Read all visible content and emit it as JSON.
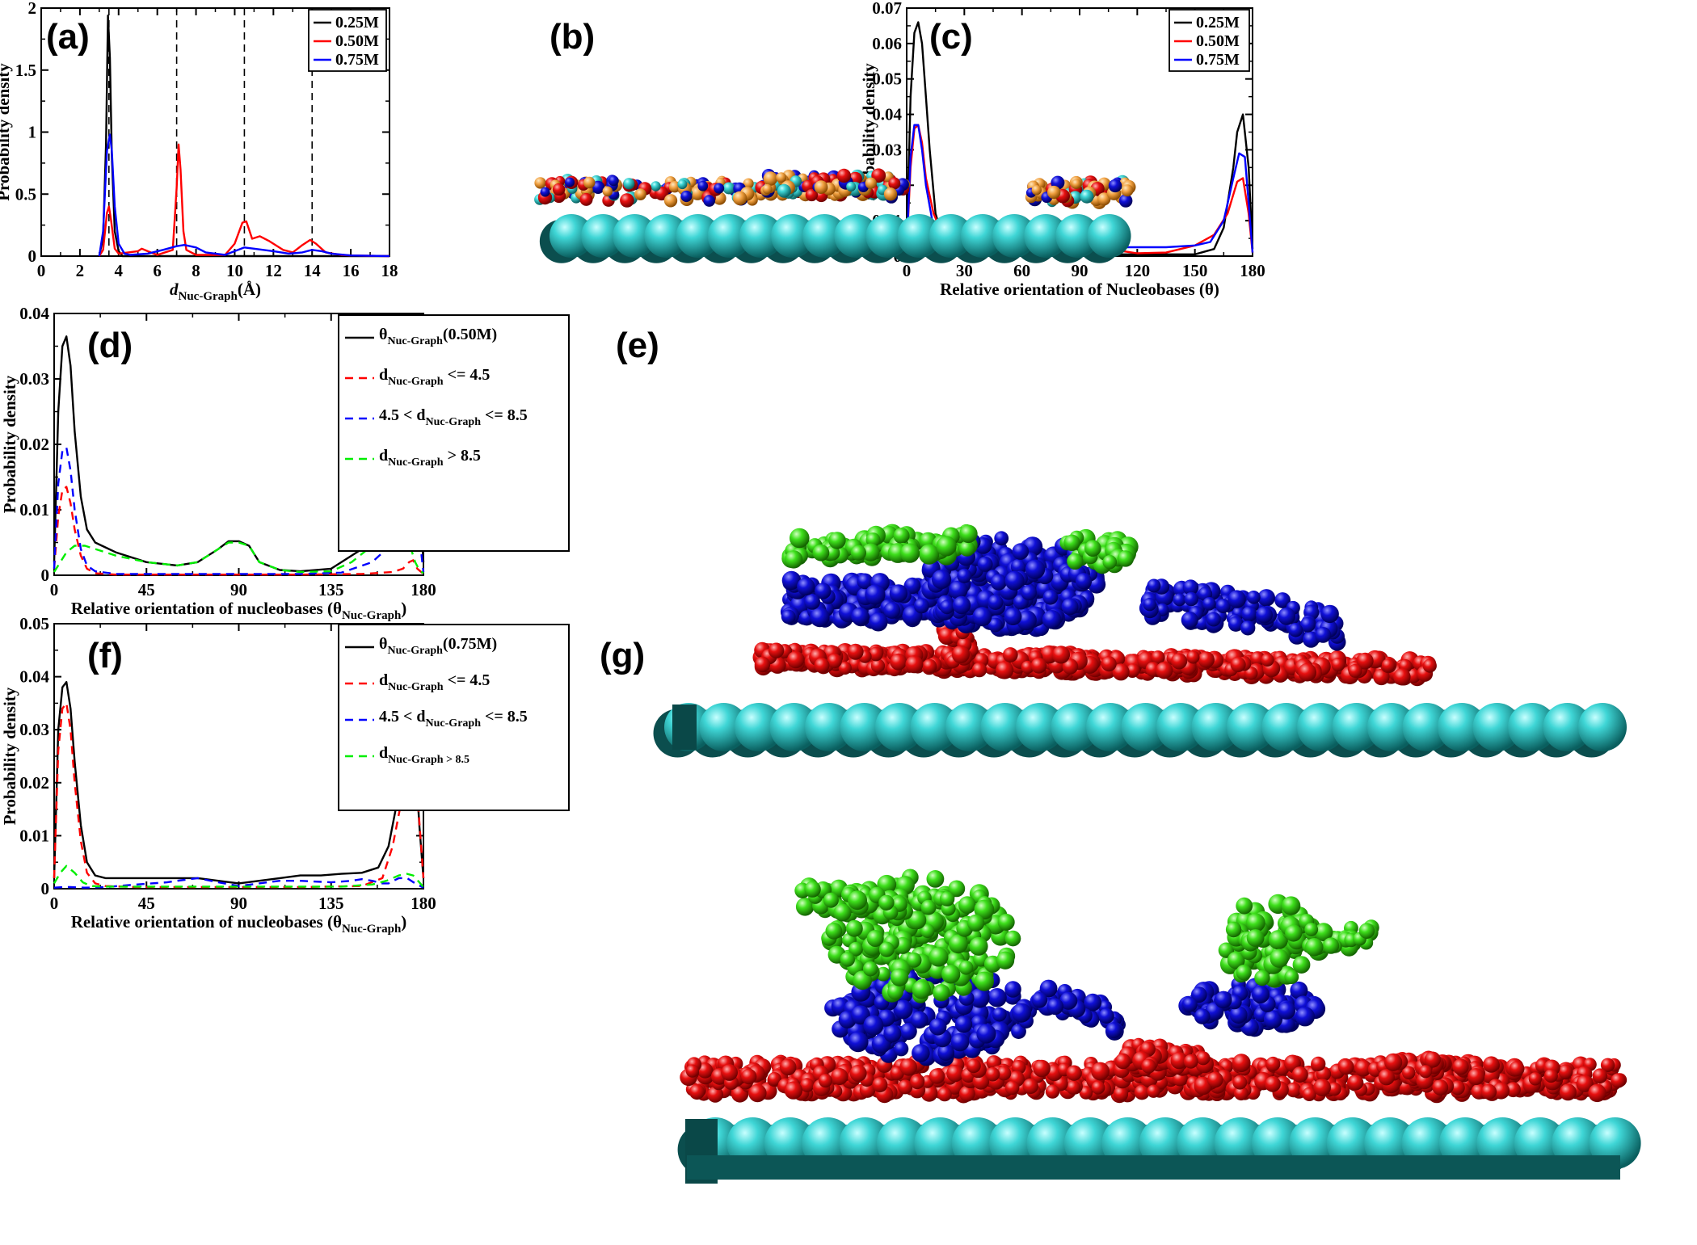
{
  "figure": {
    "panels": [
      "(a)",
      "(b)",
      "(c)",
      "(d)",
      "(e)",
      "(f)",
      "(g)"
    ]
  },
  "chart_data": [
    {
      "id": "a",
      "type": "line",
      "label": "(a)",
      "xlabel_main": "d",
      "xlabel_sub": "Nuc-Graph",
      "xlabel_tail": "(Å)",
      "ylabel": "Probability density",
      "xlim": [
        0,
        18
      ],
      "ylim": [
        0,
        2
      ],
      "xticks": [
        0,
        2,
        4,
        6,
        8,
        10,
        12,
        14,
        16,
        18
      ],
      "yticks": [
        0,
        0.5,
        1,
        1.5,
        2
      ],
      "ytick_labels": [
        "0",
        "0.5",
        "1",
        "1.5",
        "2"
      ],
      "grid": false,
      "legend_position": "top-right",
      "vlines": [
        3.5,
        7.0,
        10.5,
        14.0
      ],
      "series": [
        {
          "name": "0.25M",
          "color": "#000000",
          "x": [
            3.0,
            3.2,
            3.35,
            3.45,
            3.55,
            3.65,
            3.8,
            4.0,
            4.2,
            5.0,
            18.0
          ],
          "y": [
            0,
            0.15,
            0.9,
            1.94,
            1.6,
            0.8,
            0.2,
            0.04,
            0,
            0,
            0
          ]
        },
        {
          "name": "0.50M",
          "color": "#ff0000",
          "x": [
            3.0,
            3.2,
            3.4,
            3.5,
            3.6,
            3.8,
            4.0,
            5.0,
            5.2,
            5.5,
            6.0,
            6.8,
            7.0,
            7.1,
            7.2,
            7.35,
            7.5,
            8.0,
            9.5,
            10.0,
            10.4,
            10.6,
            10.9,
            11.3,
            11.8,
            12.5,
            13.0,
            13.5,
            13.9,
            14.2,
            14.7,
            15.5,
            16.0,
            18.0
          ],
          "y": [
            0,
            0.05,
            0.35,
            0.4,
            0.3,
            0.06,
            0.02,
            0.04,
            0.06,
            0.04,
            0.01,
            0.05,
            0.55,
            0.9,
            0.7,
            0.2,
            0.05,
            0.01,
            0.01,
            0.1,
            0.27,
            0.28,
            0.14,
            0.16,
            0.12,
            0.05,
            0.03,
            0.09,
            0.13,
            0.1,
            0.03,
            0.01,
            0.005,
            0
          ]
        },
        {
          "name": "0.75M",
          "color": "#0000ff",
          "x": [
            3.0,
            3.2,
            3.4,
            3.55,
            3.65,
            3.8,
            4.0,
            4.3,
            4.6,
            5.5,
            6.3,
            7.0,
            7.4,
            8.0,
            8.5,
            9.5,
            10.0,
            10.5,
            11.0,
            12.0,
            12.8,
            13.5,
            14.0,
            14.5,
            15.0,
            16.0,
            18.0
          ],
          "y": [
            0,
            0.2,
            0.85,
            0.98,
            0.85,
            0.4,
            0.1,
            0.02,
            0.01,
            0.02,
            0.05,
            0.08,
            0.09,
            0.07,
            0.03,
            0.01,
            0.04,
            0.07,
            0.06,
            0.04,
            0.02,
            0.03,
            0.05,
            0.04,
            0.02,
            0.005,
            0
          ]
        }
      ]
    },
    {
      "id": "c",
      "type": "line",
      "label": "(c)",
      "xlabel": "Relative orientation of Nucleobases (θ)",
      "ylabel": "Probability density",
      "xlim": [
        0,
        180
      ],
      "ylim": [
        0,
        0.07
      ],
      "xticks": [
        0,
        30,
        60,
        90,
        120,
        150,
        180
      ],
      "yticks": [
        0,
        0.01,
        0.02,
        0.03,
        0.04,
        0.05,
        0.06,
        0.07
      ],
      "ytick_labels": [
        "0",
        "0.01",
        "0.02",
        "0.03",
        "0.04",
        "0.05",
        "0.06",
        "0.07"
      ],
      "grid": false,
      "legend_position": "top-right",
      "series": [
        {
          "name": "0.25M",
          "color": "#000000",
          "x": [
            0,
            2,
            4,
            6,
            8,
            10,
            12,
            15,
            20,
            25,
            30,
            60,
            90,
            120,
            150,
            160,
            165,
            170,
            172,
            175,
            178,
            180
          ],
          "y": [
            0.002,
            0.045,
            0.063,
            0.066,
            0.06,
            0.045,
            0.03,
            0.012,
            0.003,
            0.001,
            0.0005,
            0.0005,
            0.0005,
            0.0005,
            0.0005,
            0.002,
            0.008,
            0.025,
            0.035,
            0.04,
            0.025,
            0.002
          ]
        },
        {
          "name": "0.50M",
          "color": "#ff0000",
          "x": [
            0,
            2,
            4,
            6,
            8,
            10,
            14,
            18,
            22,
            30,
            45,
            60,
            75,
            85,
            90,
            95,
            105,
            120,
            135,
            150,
            160,
            167,
            172,
            175,
            178,
            180
          ],
          "y": [
            0.002,
            0.025,
            0.036,
            0.037,
            0.032,
            0.022,
            0.012,
            0.007,
            0.005,
            0.004,
            0.0025,
            0.002,
            0.0025,
            0.0045,
            0.0052,
            0.0045,
            0.002,
            0.0008,
            0.001,
            0.003,
            0.006,
            0.012,
            0.021,
            0.022,
            0.012,
            0.001
          ]
        },
        {
          "name": "0.75M",
          "color": "#0000ff",
          "x": [
            0,
            2,
            4,
            6,
            8,
            10,
            14,
            18,
            25,
            40,
            60,
            70,
            80,
            90,
            100,
            110,
            120,
            135,
            150,
            158,
            165,
            170,
            173,
            176,
            178,
            180
          ],
          "y": [
            0.002,
            0.028,
            0.037,
            0.037,
            0.03,
            0.02,
            0.008,
            0.004,
            0.0025,
            0.002,
            0.002,
            0.0025,
            0.0015,
            0.001,
            0.0018,
            0.0025,
            0.0025,
            0.0025,
            0.003,
            0.004,
            0.01,
            0.022,
            0.029,
            0.028,
            0.015,
            0.001
          ]
        }
      ]
    },
    {
      "id": "d",
      "type": "line",
      "label": "(d)",
      "xlabel_main": "Relative orientation of nucleobases (θ",
      "xlabel_sub": "Nuc-Graph",
      "xlabel_tail": ")",
      "ylabel": "Probability density",
      "xlim": [
        0,
        180
      ],
      "ylim": [
        0,
        0.04
      ],
      "xticks": [
        0,
        45,
        90,
        135,
        180
      ],
      "yticks": [
        0,
        0.01,
        0.02,
        0.03,
        0.04
      ],
      "ytick_labels": [
        "0",
        "0.01",
        "0.02",
        "0.03",
        "0.04"
      ],
      "grid": false,
      "legend_position": "top-right",
      "legend": [
        {
          "pre": "θ",
          "sub": "Nuc-Graph",
          "post": "(0.50M)"
        },
        {
          "pre": "d",
          "sub": "Nuc-Graph",
          "post": " <= 4.5"
        },
        {
          "pre": "4.5 < d",
          "sub": "Nuc-Graph",
          "post": " <= 8.5"
        },
        {
          "pre": "d",
          "sub": "Nuc-Graph",
          "post": " > 8.5"
        }
      ],
      "series": [
        {
          "name": "θNuc-Graph(0.50M)",
          "color": "#000000",
          "dash": "",
          "x": [
            0,
            2,
            4,
            6,
            8,
            10,
            13,
            16,
            20,
            30,
            45,
            60,
            70,
            80,
            85,
            90,
            95,
            100,
            110,
            120,
            135,
            150,
            160,
            165,
            170,
            172,
            175,
            178,
            180
          ],
          "y": [
            0.002,
            0.025,
            0.035,
            0.0365,
            0.032,
            0.022,
            0.012,
            0.007,
            0.005,
            0.0035,
            0.002,
            0.0015,
            0.002,
            0.004,
            0.0052,
            0.0052,
            0.0045,
            0.002,
            0.0008,
            0.0006,
            0.001,
            0.004,
            0.007,
            0.01,
            0.018,
            0.0225,
            0.02,
            0.012,
            0.002
          ]
        },
        {
          "name": "dNuc-Graph <= 4.5",
          "color": "#ff0000",
          "dash": "10,7",
          "x": [
            0,
            2,
            4,
            6,
            8,
            10,
            13,
            16,
            20,
            30,
            60,
            90,
            120,
            150,
            165,
            170,
            173,
            175,
            177,
            180
          ],
          "y": [
            0.001,
            0.009,
            0.013,
            0.0135,
            0.011,
            0.007,
            0.003,
            0.001,
            0.0003,
            0.0001,
            0.0001,
            0.0001,
            0.0001,
            0.0002,
            0.0005,
            0.001,
            0.002,
            0.0023,
            0.001,
            0.0002
          ]
        },
        {
          "name": "4.5 < dNuc-Graph <= 8.5",
          "color": "#0000ff",
          "dash": "10,7",
          "x": [
            0,
            2,
            4,
            6,
            8,
            10,
            13,
            16,
            20,
            30,
            45,
            60,
            80,
            90,
            100,
            120,
            140,
            155,
            162,
            168,
            172,
            175,
            178,
            180
          ],
          "y": [
            0.001,
            0.014,
            0.019,
            0.0195,
            0.016,
            0.01,
            0.004,
            0.0015,
            0.0006,
            0.0002,
            0.0002,
            0.0002,
            0.0002,
            0.0002,
            0.0002,
            0.0002,
            0.0004,
            0.002,
            0.004,
            0.008,
            0.013,
            0.0145,
            0.006,
            0.0005
          ]
        },
        {
          "name": "dNuc-Graph > 8.5",
          "color": "#00ee00",
          "dash": "10,7",
          "x": [
            0,
            3,
            6,
            10,
            15,
            20,
            25,
            30,
            45,
            60,
            70,
            80,
            85,
            90,
            95,
            100,
            110,
            120,
            135,
            145,
            155,
            162,
            167,
            170,
            173,
            176,
            178,
            180
          ],
          "y": [
            0.0005,
            0.002,
            0.0035,
            0.0045,
            0.0045,
            0.004,
            0.0035,
            0.003,
            0.002,
            0.0015,
            0.002,
            0.004,
            0.005,
            0.005,
            0.0045,
            0.002,
            0.0008,
            0.0005,
            0.0006,
            0.002,
            0.0045,
            0.0062,
            0.007,
            0.0068,
            0.005,
            0.002,
            0.0008,
            0.0003
          ]
        }
      ]
    },
    {
      "id": "f",
      "type": "line",
      "label": "(f)",
      "xlabel_main": "Relative orientation of nucleobases (θ",
      "xlabel_sub": "Nuc-Graph",
      "xlabel_tail": ")",
      "ylabel": "Probability density",
      "xlim": [
        0,
        180
      ],
      "ylim": [
        0,
        0.05
      ],
      "xticks": [
        0,
        45,
        90,
        135,
        180
      ],
      "yticks": [
        0,
        0.01,
        0.02,
        0.03,
        0.04,
        0.05
      ],
      "ytick_labels": [
        "0",
        "0.01",
        "0.02",
        "0.03",
        "0.04",
        "0.05"
      ],
      "grid": false,
      "legend_position": "top-right",
      "legend": [
        {
          "pre": "θ",
          "sub": "Nuc-Graph",
          "post": "(0.75M)"
        },
        {
          "pre": "d",
          "sub": "Nuc-Graph",
          "post": " <= 4.5"
        },
        {
          "pre": "4.5 < d",
          "sub": "Nuc-Graph",
          "post": " <= 8.5"
        },
        {
          "pre": "d",
          "sub": "Nuc-Graph > 8.5",
          "post": ""
        }
      ],
      "series": [
        {
          "name": "θNuc-Graph(0.75M)",
          "color": "#000000",
          "dash": "",
          "x": [
            0,
            2,
            4,
            6,
            8,
            10,
            13,
            16,
            20,
            25,
            30,
            40,
            50,
            60,
            70,
            80,
            90,
            100,
            110,
            120,
            130,
            140,
            150,
            158,
            163,
            168,
            172,
            174,
            176,
            178,
            180
          ],
          "y": [
            0.002,
            0.03,
            0.038,
            0.039,
            0.034,
            0.024,
            0.012,
            0.005,
            0.0025,
            0.002,
            0.002,
            0.002,
            0.002,
            0.002,
            0.002,
            0.0015,
            0.001,
            0.0015,
            0.002,
            0.0025,
            0.0025,
            0.0028,
            0.003,
            0.004,
            0.008,
            0.018,
            0.028,
            0.029,
            0.025,
            0.012,
            0.002
          ]
        },
        {
          "name": "dNuc-Graph <= 4.5",
          "color": "#ff0000",
          "dash": "10,7",
          "x": [
            0,
            2,
            4,
            6,
            8,
            10,
            13,
            16,
            20,
            25,
            40,
            60,
            90,
            120,
            150,
            160,
            165,
            170,
            173,
            175,
            177,
            180
          ],
          "y": [
            0.002,
            0.026,
            0.034,
            0.035,
            0.03,
            0.02,
            0.009,
            0.003,
            0.001,
            0.0005,
            0.0003,
            0.0003,
            0.0003,
            0.0003,
            0.0005,
            0.002,
            0.008,
            0.018,
            0.024,
            0.025,
            0.018,
            0.002
          ]
        },
        {
          "name": "4.5 < dNuc-Graph <= 8.5",
          "color": "#0000ff",
          "dash": "10,7",
          "x": [
            0,
            4,
            8,
            15,
            25,
            40,
            55,
            60,
            70,
            80,
            90,
            100,
            110,
            120,
            135,
            145,
            150,
            155,
            160,
            163,
            168,
            172,
            176,
            180
          ],
          "y": [
            0.0002,
            0.0003,
            0.0003,
            0.0002,
            0.0003,
            0.0008,
            0.0012,
            0.0015,
            0.002,
            0.0012,
            0.0005,
            0.001,
            0.0015,
            0.0015,
            0.0012,
            0.0015,
            0.0018,
            0.0015,
            0.001,
            0.001,
            0.002,
            0.002,
            0.001,
            0.0002
          ]
        },
        {
          "name": "dNuc-Graph > 8.5",
          "color": "#00ee00",
          "dash": "10,7",
          "x": [
            0,
            3,
            6,
            10,
            14,
            18,
            25,
            40,
            60,
            80,
            95,
            110,
            125,
            140,
            155,
            162,
            168,
            172,
            175,
            178,
            180
          ],
          "y": [
            0.001,
            0.003,
            0.0043,
            0.003,
            0.0012,
            0.0005,
            0.0004,
            0.0004,
            0.0004,
            0.0004,
            0.0004,
            0.0004,
            0.0004,
            0.0004,
            0.0008,
            0.0015,
            0.0025,
            0.0028,
            0.0025,
            0.0012,
            0.0003
          ]
        }
      ]
    }
  ]
}
